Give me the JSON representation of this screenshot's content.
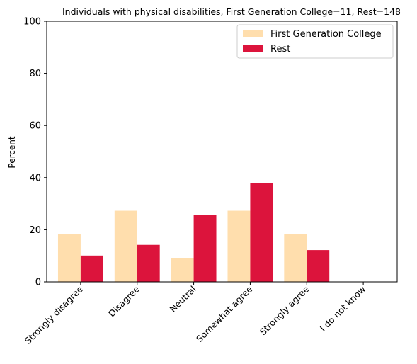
{
  "chart_data": {
    "type": "bar",
    "title": "Individuals with physical disabilities, First Generation College=11, Rest=148",
    "xlabel": "",
    "ylabel": "Percent",
    "ylim": [
      0,
      100
    ],
    "yticks": [
      "0",
      "20",
      "40",
      "60",
      "80",
      "100"
    ],
    "categories": [
      "Strongly disagree",
      "Disagree",
      "Neutral",
      "Somewhat agree",
      "Strongly agree",
      "I do not know"
    ],
    "series": [
      {
        "name": "First Generation College",
        "color": "#ffdead",
        "values": [
          18.2,
          27.3,
          9.1,
          27.3,
          18.2,
          0
        ]
      },
      {
        "name": "Rest",
        "color": "#dc143c",
        "values": [
          10.1,
          14.2,
          25.7,
          37.8,
          12.2,
          0
        ]
      }
    ],
    "legend_position": "top-right",
    "grid": false
  }
}
